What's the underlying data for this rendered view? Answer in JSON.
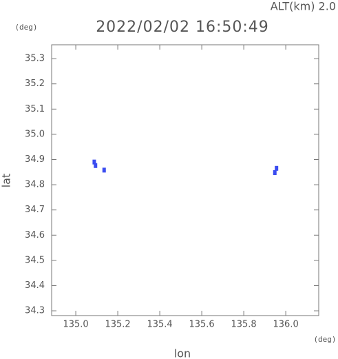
{
  "chart_data": {
    "type": "scatter",
    "title": "2022/02/02 16:50:49",
    "annotation": "ALT(km) 2.0",
    "y_unit": "(deg)",
    "x_unit": "(deg)",
    "xlabel": "lon",
    "ylabel": "lat",
    "xlim": [
      134.885,
      136.157
    ],
    "ylim": [
      34.281,
      35.355
    ],
    "xticks": [
      {
        "value": 135.0,
        "label": "135.0"
      },
      135.2,
      135.4,
      135.6,
      135.8,
      {
        "value": 136.0,
        "label": "136.0"
      }
    ],
    "yticks": [
      34.3,
      34.4,
      34.5,
      34.6,
      34.7,
      34.8,
      34.9,
      {
        "value": 35.0,
        "label": "35.0"
      },
      35.1,
      35.2,
      35.3
    ],
    "series": [
      {
        "color": "#3b4cf0",
        "x": [
          135.088,
          135.094,
          135.135,
          135.948,
          135.956
        ],
        "values": [
          34.89,
          34.876,
          34.858,
          34.848,
          34.865
        ]
      }
    ]
  }
}
